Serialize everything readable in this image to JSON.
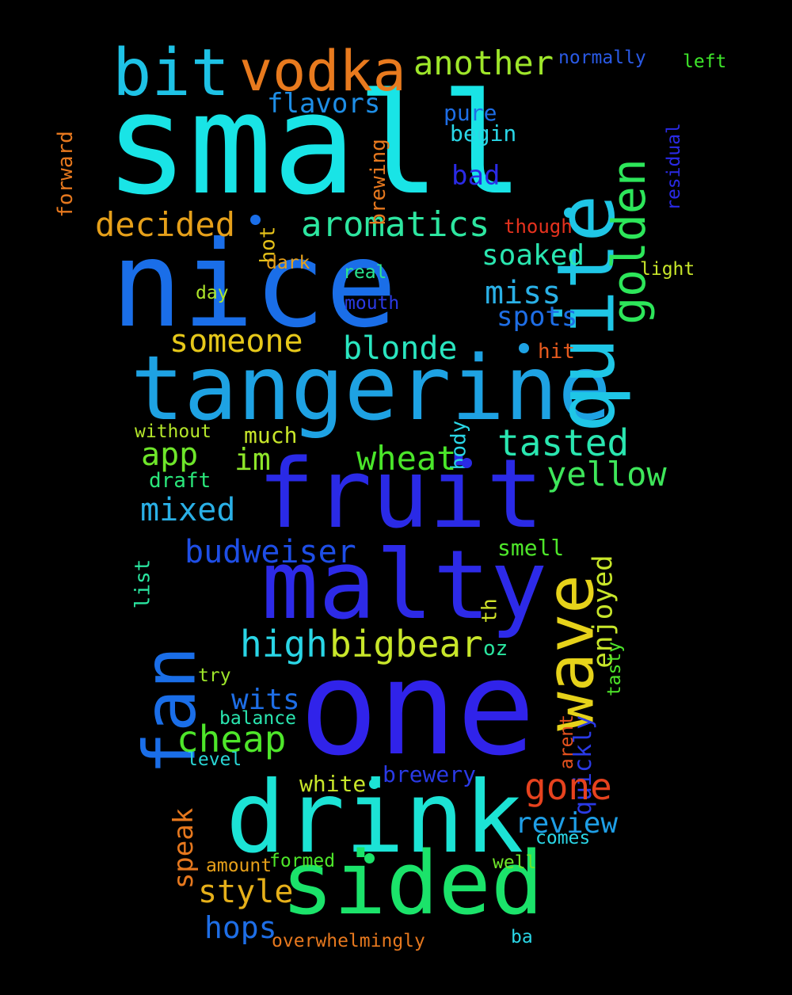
{
  "words": [
    {
      "id": "small",
      "text": "small",
      "color": "#19e4e6"
    },
    {
      "id": "nice",
      "text": "nice",
      "color": "#1a6ee8"
    },
    {
      "id": "tangerine",
      "text": "tangerine",
      "color": "#1ea2e3"
    },
    {
      "id": "one",
      "text": "one",
      "color": "#3023ea"
    },
    {
      "id": "fruit",
      "text": "fruit",
      "color": "#2a2ae6"
    },
    {
      "id": "malty",
      "text": "malty",
      "color": "#2d2ae8"
    },
    {
      "id": "drink",
      "text": "drink",
      "color": "#1ce3d5"
    },
    {
      "id": "sided",
      "text": "sided",
      "color": "#1be36a"
    },
    {
      "id": "quite",
      "text": "quite",
      "color": "#1fc6e6"
    },
    {
      "id": "fan",
      "text": "fan",
      "color": "#1a6ee8"
    },
    {
      "id": "wave",
      "text": "wave",
      "color": "#e6d21a"
    },
    {
      "id": "vodka",
      "text": "vodka",
      "color": "#e87a1e"
    },
    {
      "id": "bit",
      "text": "bit",
      "color": "#1ec2e6"
    },
    {
      "id": "golden",
      "text": "golden",
      "color": "#2de65a"
    },
    {
      "id": "another",
      "text": "another",
      "color": "#9ee62a"
    },
    {
      "id": "aromatics",
      "text": "aromatics",
      "color": "#2de6a0"
    },
    {
      "id": "decided",
      "text": "decided",
      "color": "#e6a01a"
    },
    {
      "id": "flavors",
      "text": "flavors",
      "color": "#1e8ee6"
    },
    {
      "id": "normally",
      "text": "normally",
      "color": "#2a5ae6"
    },
    {
      "id": "left",
      "text": "left",
      "color": "#3ee62a"
    },
    {
      "id": "residual",
      "text": "residual",
      "color": "#2a2ae6"
    },
    {
      "id": "forward",
      "text": "forward",
      "color": "#e6781e"
    },
    {
      "id": "brewing",
      "text": "brewing",
      "color": "#e6781e"
    },
    {
      "id": "pure",
      "text": "pure",
      "color": "#1e6ee6"
    },
    {
      "id": "begin",
      "text": "begin",
      "color": "#2ad6e6"
    },
    {
      "id": "bad",
      "text": "bad",
      "color": "#2a2ae6"
    },
    {
      "id": "though",
      "text": "though",
      "color": "#e6321e"
    },
    {
      "id": "hot",
      "text": "hot",
      "color": "#e6c21a"
    },
    {
      "id": "soaked",
      "text": "soaked",
      "color": "#2ae6b0"
    },
    {
      "id": "light",
      "text": "light",
      "color": "#c8e62a"
    },
    {
      "id": "dark",
      "text": "dark",
      "color": "#e6a01a"
    },
    {
      "id": "real",
      "text": "real",
      "color": "#2ae690"
    },
    {
      "id": "miss",
      "text": "miss",
      "color": "#2ab0e6"
    },
    {
      "id": "day",
      "text": "day",
      "color": "#aee62a"
    },
    {
      "id": "mouth",
      "text": "mouth",
      "color": "#2a3ae6"
    },
    {
      "id": "spots",
      "text": "spots",
      "color": "#1e6ee6"
    },
    {
      "id": "someone",
      "text": "someone",
      "color": "#e6c81a"
    },
    {
      "id": "blonde",
      "text": "blonde",
      "color": "#2ae6c0"
    },
    {
      "id": "hit",
      "text": "hit",
      "color": "#e65a1e"
    },
    {
      "id": "body",
      "text": "body",
      "color": "#2ad6e6"
    },
    {
      "id": "without",
      "text": "without",
      "color": "#b4e62a"
    },
    {
      "id": "much",
      "text": "much",
      "color": "#c8e62a"
    },
    {
      "id": "app",
      "text": "app",
      "color": "#6ee62a"
    },
    {
      "id": "im",
      "text": "im",
      "color": "#8ee62a"
    },
    {
      "id": "wheat",
      "text": "wheat",
      "color": "#4ae62a"
    },
    {
      "id": "tasted",
      "text": "tasted",
      "color": "#2ae6b0"
    },
    {
      "id": "yellow",
      "text": "yellow",
      "color": "#3ee65a"
    },
    {
      "id": "draft",
      "text": "draft",
      "color": "#2ae67a"
    },
    {
      "id": "mixed",
      "text": "mixed",
      "color": "#2ab0e6"
    },
    {
      "id": "enjoyed",
      "text": "enjoyed",
      "color": "#c8e62a"
    },
    {
      "id": "budweiser",
      "text": "budweiser",
      "color": "#1e4ee6"
    },
    {
      "id": "smell",
      "text": "smell",
      "color": "#4ee62a"
    },
    {
      "id": "list",
      "text": "list",
      "color": "#2ae6a0"
    },
    {
      "id": "th",
      "text": "th",
      "color": "#d2e62a"
    },
    {
      "id": "high",
      "text": "high",
      "color": "#2ad6e6"
    },
    {
      "id": "bigbear",
      "text": "bigbear",
      "color": "#c8e62a"
    },
    {
      "id": "oz",
      "text": "oz",
      "color": "#2ae6a0"
    },
    {
      "id": "tasty",
      "text": "tasty",
      "color": "#4ee62a"
    },
    {
      "id": "try",
      "text": "try",
      "color": "#9ee62a"
    },
    {
      "id": "wits",
      "text": "wits",
      "color": "#1e6ee6"
    },
    {
      "id": "quickly",
      "text": "quickly",
      "color": "#2a3ae6"
    },
    {
      "id": "arent",
      "text": "arent",
      "color": "#e6521e"
    },
    {
      "id": "balance",
      "text": "balance",
      "color": "#2ae6b0"
    },
    {
      "id": "cheap",
      "text": "cheap",
      "color": "#4ee62a"
    },
    {
      "id": "level",
      "text": "level",
      "color": "#2ad6d6"
    },
    {
      "id": "speak",
      "text": "speak",
      "color": "#e6781e"
    },
    {
      "id": "white",
      "text": "white",
      "color": "#c8e62a"
    },
    {
      "id": "brewery",
      "text": "brewery",
      "color": "#2a3ae6"
    },
    {
      "id": "gone",
      "text": "gone",
      "color": "#e6421e"
    },
    {
      "id": "review",
      "text": "review",
      "color": "#1e9ee6"
    },
    {
      "id": "comes",
      "text": "comes",
      "color": "#2ad6e6"
    },
    {
      "id": "amount",
      "text": "amount",
      "color": "#e6a01a"
    },
    {
      "id": "formed",
      "text": "formed",
      "color": "#4ee62a"
    },
    {
      "id": "well",
      "text": "well",
      "color": "#6ee62a"
    },
    {
      "id": "style",
      "text": "style",
      "color": "#e6b01a"
    },
    {
      "id": "hops",
      "text": "hops",
      "color": "#1e6ee6"
    },
    {
      "id": "overwhelmingly",
      "text": "overwhelmingly",
      "color": "#e6781e"
    },
    {
      "id": "ba",
      "text": "ba",
      "color": "#2ad6e6"
    }
  ]
}
